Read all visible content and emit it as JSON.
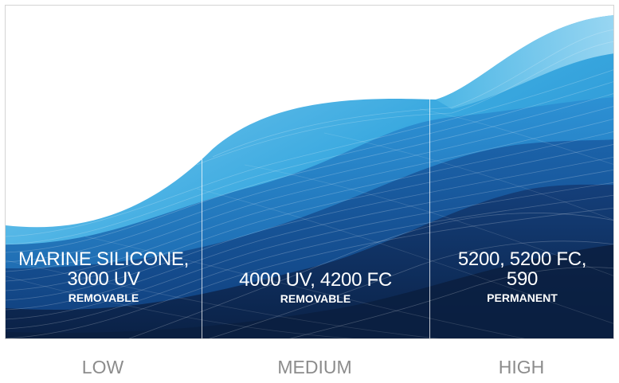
{
  "panels": [
    {
      "product": "MARINE SILICONE, 3000 UV",
      "product_line1": "MARINE SILICONE,",
      "product_line2": "3000 UV",
      "kind": "REMOVABLE"
    },
    {
      "product": "4000 UV, 4200 FC",
      "product_line1": "4000 UV, 4200 FC",
      "product_line2": "",
      "kind": "REMOVABLE"
    },
    {
      "product": "5200, 5200 FC, 590",
      "product_line1": "5200, 5200 FC,",
      "product_line2": "590",
      "kind": "PERMANENT"
    }
  ],
  "levels": [
    "LOW",
    "MEDIUM",
    "HIGH"
  ],
  "colors": {
    "light_blue": "#4fb8e6",
    "mid_blue": "#1f78c2",
    "deep_blue": "#0d3f7e",
    "darkest_navy": "#0c2347",
    "level_text": "#8c8c8c",
    "frame": "#d3d3d3"
  }
}
